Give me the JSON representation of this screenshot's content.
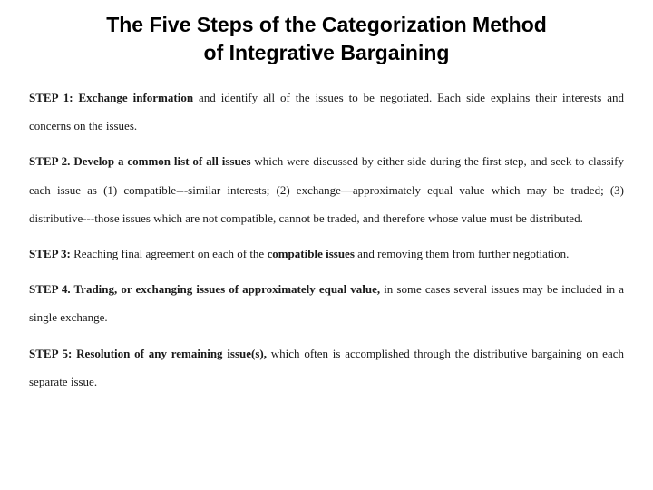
{
  "title_line1": "The Five Steps of the Categorization Method",
  "title_line2": "of Integrative Bargaining",
  "typography": {
    "title_font_family": "Verdana, Arial, sans-serif",
    "title_font_size_pt": 17,
    "title_font_weight": 700,
    "body_font_family": "Georgia, 'Times New Roman', serif",
    "body_font_size_pt": 10,
    "body_line_height": 2.4,
    "text_color": "#1a1a1a",
    "background_color": "#ffffff"
  },
  "steps": [
    {
      "label": "STEP 1:",
      "emph": "Exchange information",
      "rest": " and identify all of the issues to be negotiated. Each side explains their interests and concerns on the issues."
    },
    {
      "label": "STEP 2.",
      "emph": " Develop a common list of all issues",
      "rest": " which were discussed by either side during the first step, and seek to classify each issue as (1) compatible---similar interests; (2) exchange—approximately equal value which may be traded; (3) distributive---those issues which are not compatible, cannot be traded, and therefore whose value must be distributed."
    },
    {
      "label": "STEP 3:",
      "emph": "",
      "rest": " Reaching final agreement on each of the ",
      "emph2": "compatible issues",
      "rest2": " and removing them from further negotiation."
    },
    {
      "label": "STEP 4.",
      "emph": " Trading, or exchanging issues of approximately equal value,",
      "rest": " in some cases several issues may be included in a single exchange."
    },
    {
      "label": "STEP 5:",
      "emph": " Resolution of any remaining issue(s),",
      "rest": " which often is accomplished through the distributive bargaining on each separate issue."
    }
  ]
}
